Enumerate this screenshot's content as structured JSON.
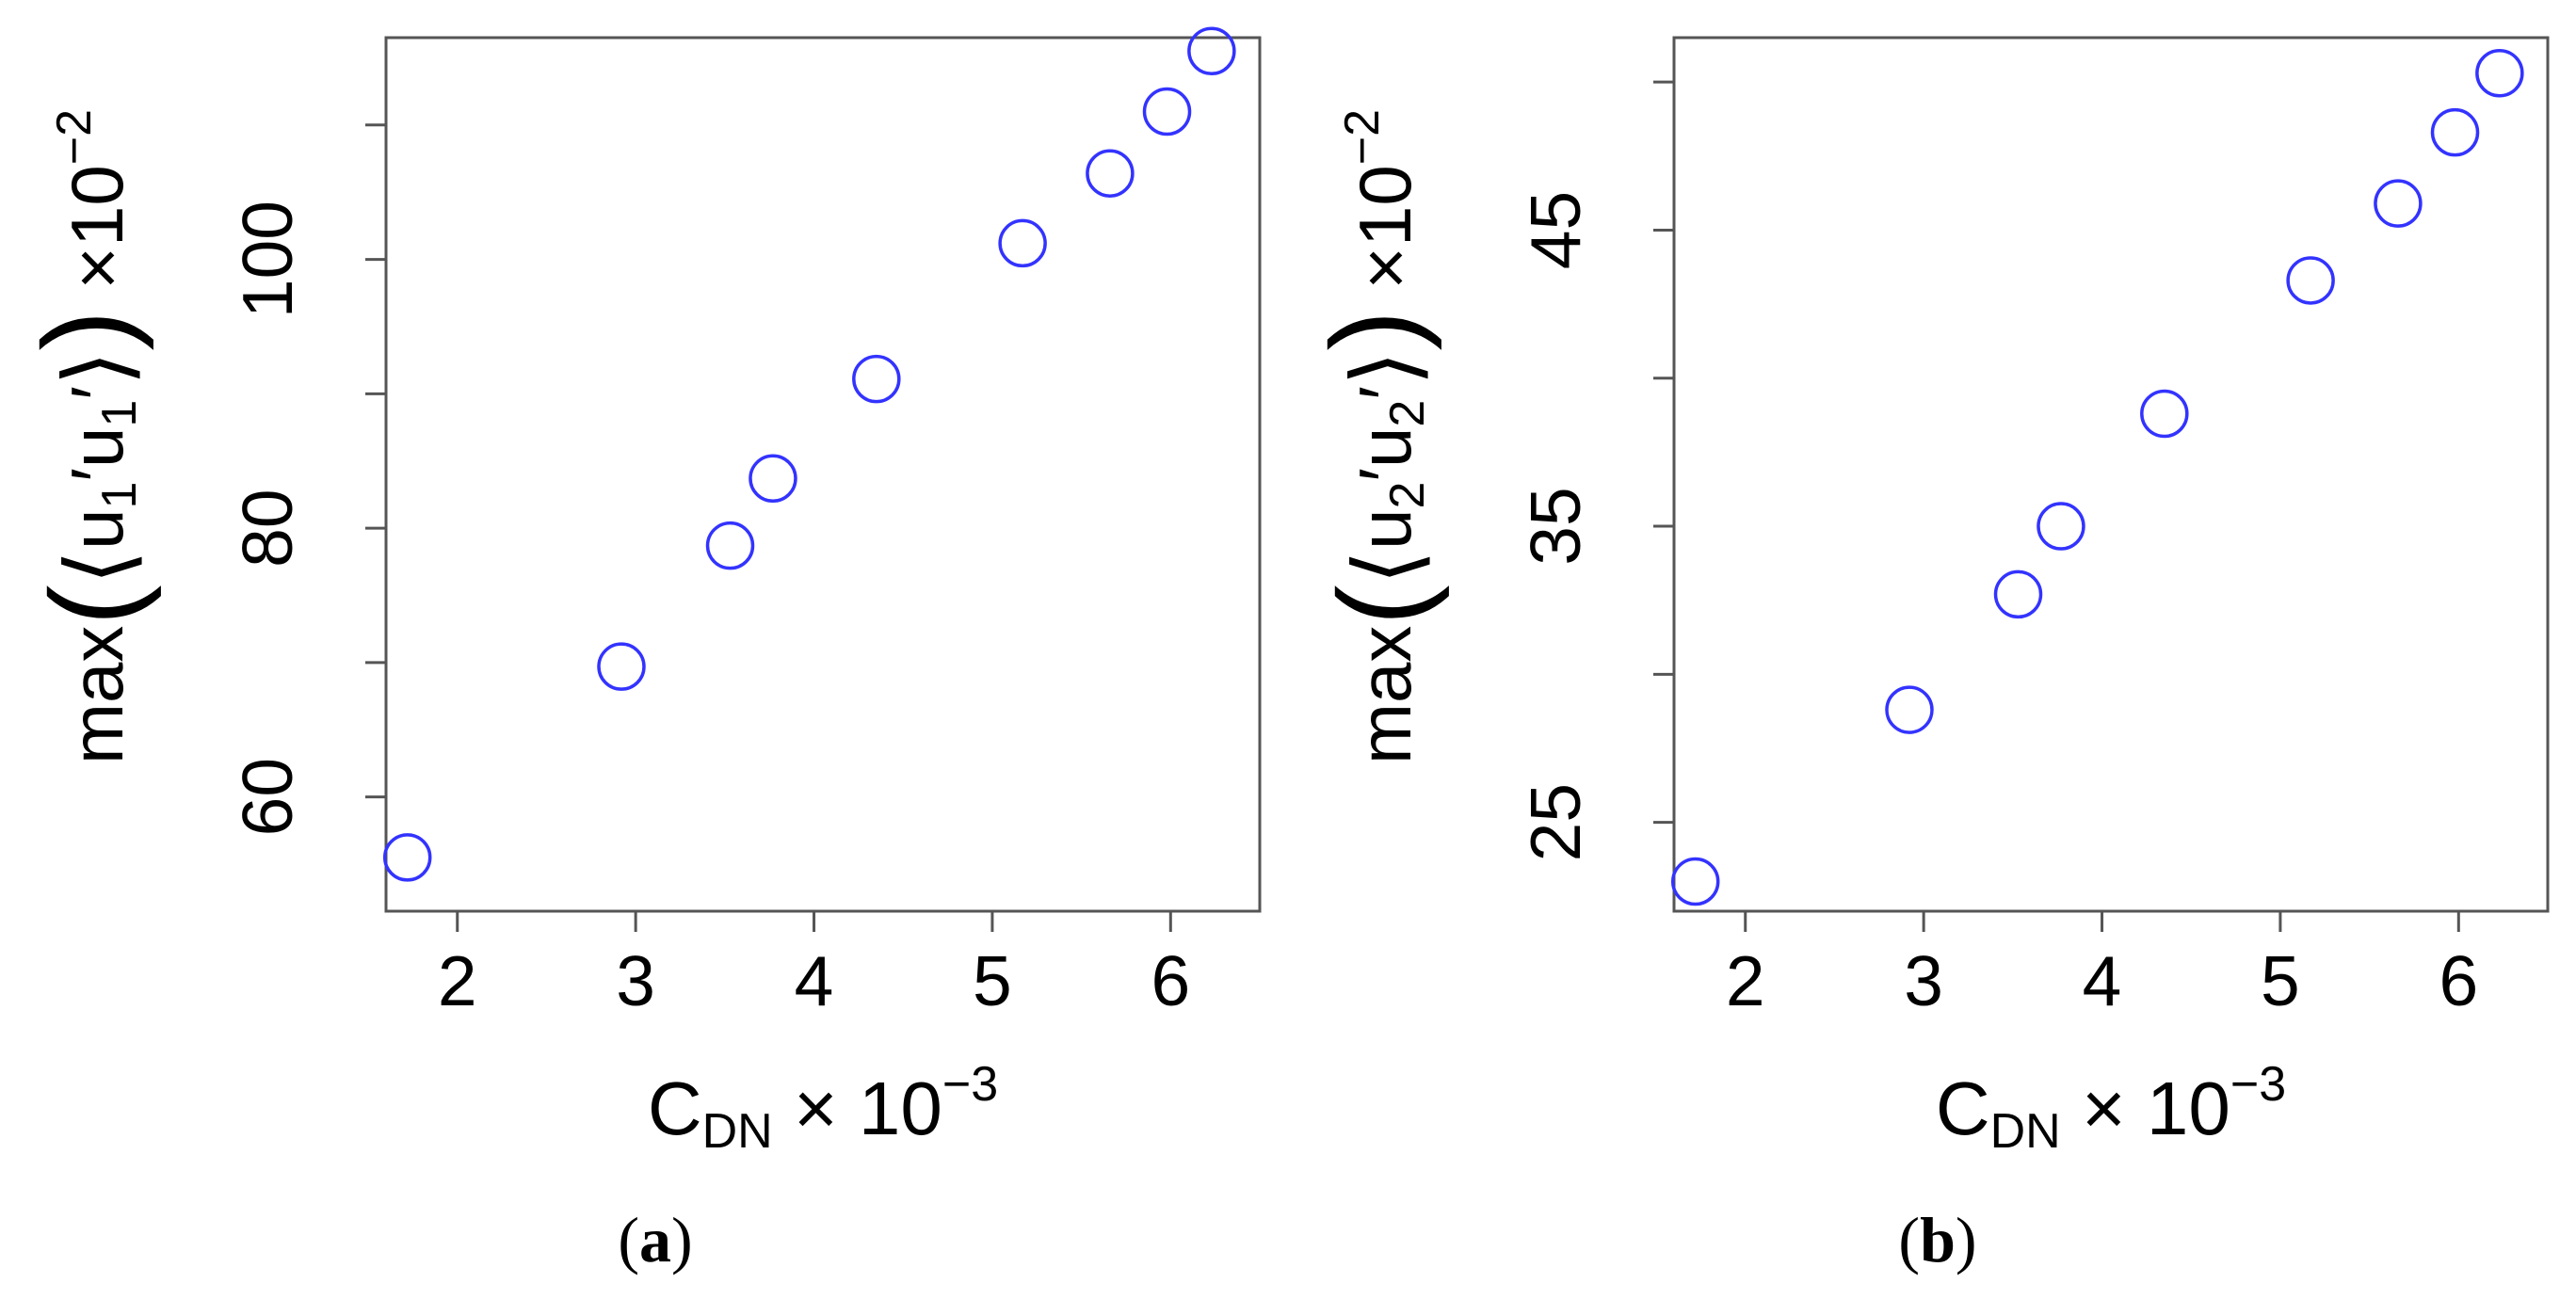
{
  "chart_data": [
    {
      "type": "scatter",
      "panel_label": "a",
      "xlabel": {
        "base": "C",
        "sub": "DN",
        "mult": "×",
        "pow_base": "10",
        "pow_exp": "−3"
      },
      "ylabel": {
        "func": "max",
        "var": "u",
        "idx": "1",
        "prime": "′",
        "mult": "×",
        "pow_base": "10",
        "pow_exp": "−2"
      },
      "xlim": [
        1.6,
        6.5
      ],
      "ylim": [
        51.5,
        116.5
      ],
      "xticks": [
        2,
        3,
        4,
        5,
        6
      ],
      "yticks": [
        60,
        80,
        100
      ],
      "yticks_minor": [
        70,
        90,
        110
      ],
      "marker": {
        "shape": "open-circle",
        "color": "#3333ff"
      },
      "x": [
        1.72,
        2.92,
        3.53,
        3.77,
        4.35,
        5.17,
        5.66,
        5.98,
        6.23
      ],
      "y": [
        55.5,
        69.7,
        78.7,
        83.7,
        91.1,
        101.2,
        106.4,
        111.0,
        115.5
      ]
    },
    {
      "type": "scatter",
      "panel_label": "b",
      "xlabel": {
        "base": "C",
        "sub": "DN",
        "mult": "×",
        "pow_base": "10",
        "pow_exp": "−3"
      },
      "ylabel": {
        "func": "max",
        "var": "u",
        "idx": "2",
        "prime": "′",
        "mult": "×",
        "pow_base": "10",
        "pow_exp": "−2"
      },
      "xlim": [
        1.6,
        6.5
      ],
      "ylim": [
        22,
        51.5
      ],
      "xticks": [
        2,
        3,
        4,
        5,
        6
      ],
      "yticks": [
        25,
        35,
        45
      ],
      "yticks_minor": [
        30,
        40,
        50
      ],
      "marker": {
        "shape": "open-circle",
        "color": "#3333ff"
      },
      "x": [
        1.72,
        2.92,
        3.53,
        3.77,
        4.35,
        5.17,
        5.66,
        5.98,
        6.23
      ],
      "y": [
        23.0,
        28.8,
        32.7,
        35.0,
        38.8,
        43.3,
        45.9,
        48.3,
        50.3
      ]
    }
  ],
  "captions": [
    "a",
    "b"
  ]
}
